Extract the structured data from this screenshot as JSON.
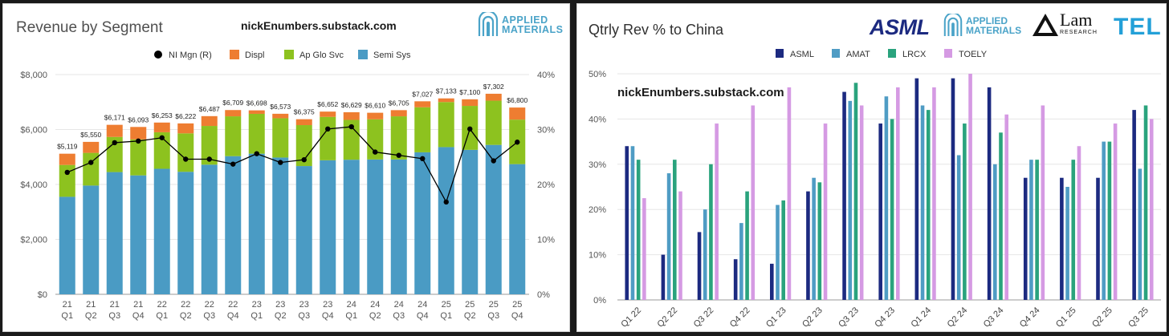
{
  "left_panel": {
    "title": "Revenue by Segment",
    "site": "nickEnumbers.substack.com",
    "logo_text_1": "APPLIED",
    "logo_text_2": "MATERIALS"
  },
  "right_panel": {
    "title": "Qtrly Rev % to China",
    "site": "nickEnumbers.substack.com",
    "logos": {
      "asml": "ASML",
      "amat_1": "APPLIED",
      "amat_2": "MATERIALS",
      "lam_1": "Lam",
      "lam_2": "RESEARCH",
      "tel": "TEL"
    }
  },
  "colors": {
    "semi": "#4a9bc4",
    "apglo": "#8dc21f",
    "displ": "#ee7d31",
    "nimgn": "#000000",
    "asml": "#1c2a80",
    "amat": "#4f9cc4",
    "lrcx": "#2aa37d",
    "toely": "#d59ae3"
  },
  "chart_data": [
    {
      "type": "bar",
      "stacked": true,
      "title": "Revenue by Segment",
      "categories": [
        "21 Q1",
        "21 Q2",
        "21 Q3",
        "21 Q4",
        "22 Q1",
        "22 Q2",
        "22 Q3",
        "22 Q4",
        "23 Q1",
        "23 Q2",
        "23 Q3",
        "23 Q4",
        "24 Q1",
        "24 Q2",
        "24 Q3",
        "24 Q4",
        "25 Q1",
        "25 Q2",
        "25 Q3",
        "25 Q4"
      ],
      "series": [
        {
          "name": "Semi Sys",
          "values": [
            3550,
            3960,
            4450,
            4330,
            4570,
            4460,
            4720,
            5030,
            5120,
            4980,
            4670,
            4880,
            4900,
            4910,
            4910,
            5170,
            5360,
            5260,
            5440,
            4740
          ]
        },
        {
          "name": "Ap Glo Svc",
          "values": [
            1160,
            1190,
            1280,
            1310,
            1330,
            1400,
            1410,
            1450,
            1450,
            1430,
            1490,
            1580,
            1450,
            1460,
            1570,
            1640,
            1640,
            1600,
            1610,
            1620
          ]
        },
        {
          "name": "Displ",
          "values": [
            409,
            400,
            441,
            453,
            353,
            362,
            357,
            229,
            128,
            163,
            215,
            192,
            279,
            240,
            225,
            217,
            133,
            240,
            252,
            440
          ]
        },
        {
          "name": "NI Mgn (R)",
          "axis": "right",
          "values": [
            22.2,
            24.0,
            27.6,
            27.9,
            28.5,
            24.6,
            24.6,
            23.7,
            25.6,
            24.0,
            24.5,
            30.1,
            30.5,
            25.9,
            25.3,
            24.7,
            16.8,
            30.1,
            24.3,
            27.7
          ]
        }
      ],
      "totals": [
        "$5,119",
        "$5,550",
        "$6,171",
        "$6,093",
        "$6,253",
        "$6,222",
        "$6,487",
        "$6,709",
        "$6,698",
        "$6,573",
        "$6,375",
        "$6,652",
        "$6,629",
        "$6,610",
        "$6,705",
        "$7,027",
        "$7,133",
        "$7,100",
        "$7,302",
        "$6,800"
      ],
      "ylim": [
        0,
        8000
      ],
      "y2lim": [
        0,
        40
      ],
      "yticks": [
        "$0",
        "$2,000",
        "$4,000",
        "$6,000",
        "$8,000"
      ],
      "y2ticks": [
        "0%",
        "10%",
        "20%",
        "30%",
        "40%"
      ],
      "legend_position": "top",
      "grid": true
    },
    {
      "type": "bar",
      "title": "Qtrly Rev % to China",
      "categories": [
        "Q1 22",
        "Q2 22",
        "Q3 22",
        "Q4 22",
        "Q1 23",
        "Q2 23",
        "Q3 23",
        "Q4 23",
        "Q1 24",
        "Q2 24",
        "Q3 24",
        "Q4 24",
        "Q1 25",
        "Q2 25",
        "Q3 25"
      ],
      "series": [
        {
          "name": "ASML",
          "values": [
            34,
            10,
            15,
            9,
            8,
            24,
            46,
            39,
            49,
            49,
            47,
            27,
            27,
            27,
            42
          ]
        },
        {
          "name": "AMAT",
          "values": [
            34,
            28,
            20,
            17,
            21,
            27,
            44,
            45,
            43,
            32,
            30,
            31,
            25,
            35,
            29
          ]
        },
        {
          "name": "LRCX",
          "values": [
            31,
            31,
            30,
            24,
            22,
            26,
            48,
            40,
            42,
            39,
            37,
            31,
            31,
            35,
            43
          ]
        },
        {
          "name": "TOELY",
          "values": [
            22.5,
            24,
            39,
            43,
            47,
            39,
            43,
            47,
            47,
            50,
            41,
            43,
            34,
            39,
            40
          ]
        }
      ],
      "ylim": [
        0,
        50
      ],
      "yticks": [
        "0%",
        "10%",
        "20%",
        "30%",
        "40%",
        "50%"
      ],
      "legend_position": "top",
      "grid": true
    }
  ]
}
